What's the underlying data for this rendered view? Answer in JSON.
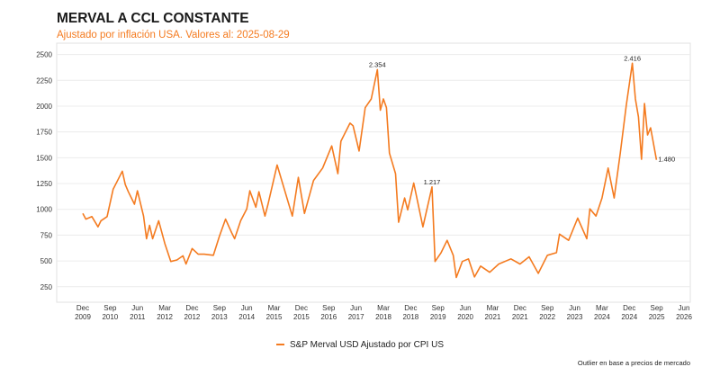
{
  "chart_data": {
    "type": "line",
    "title": "MERVAL A CCL CONSTANTE",
    "subtitle": "Ajustado por inflación USA. Valores al: 2025-08-29",
    "xlabel": "",
    "ylabel": "",
    "ylim": [
      100,
      2610
    ],
    "xlim": [
      "2009-12",
      "2026-06"
    ],
    "grid": true,
    "legend_position": "bottom",
    "y_ticks": [
      250,
      500,
      750,
      1000,
      1250,
      1500,
      1750,
      2000,
      2250,
      2500
    ],
    "x_ticks": [
      {
        "date": "2009-12",
        "label": [
          "Dec",
          "2009"
        ]
      },
      {
        "date": "2010-09",
        "label": [
          "Sep",
          "2010"
        ]
      },
      {
        "date": "2011-06",
        "label": [
          "Jun",
          "2011"
        ]
      },
      {
        "date": "2012-03",
        "label": [
          "Mar",
          "2012"
        ]
      },
      {
        "date": "2012-12",
        "label": [
          "Dec",
          "2012"
        ]
      },
      {
        "date": "2013-09",
        "label": [
          "Sep",
          "2013"
        ]
      },
      {
        "date": "2014-06",
        "label": [
          "Jun",
          "2014"
        ]
      },
      {
        "date": "2015-03",
        "label": [
          "Mar",
          "2015"
        ]
      },
      {
        "date": "2015-12",
        "label": [
          "Dec",
          "2015"
        ]
      },
      {
        "date": "2016-09",
        "label": [
          "Sep",
          "2016"
        ]
      },
      {
        "date": "2017-06",
        "label": [
          "Jun",
          "2017"
        ]
      },
      {
        "date": "2018-03",
        "label": [
          "Mar",
          "2018"
        ]
      },
      {
        "date": "2018-12",
        "label": [
          "Dec",
          "2018"
        ]
      },
      {
        "date": "2019-09",
        "label": [
          "Sep",
          "2019"
        ]
      },
      {
        "date": "2020-06",
        "label": [
          "Jun",
          "2020"
        ]
      },
      {
        "date": "2021-03",
        "label": [
          "Mar",
          "2021"
        ]
      },
      {
        "date": "2021-12",
        "label": [
          "Dec",
          "2021"
        ]
      },
      {
        "date": "2022-09",
        "label": [
          "Sep",
          "2022"
        ]
      },
      {
        "date": "2023-06",
        "label": [
          "Jun",
          "2023"
        ]
      },
      {
        "date": "2024-03",
        "label": [
          "Mar",
          "2024"
        ]
      },
      {
        "date": "2024-12",
        "label": [
          "Dec",
          "2024"
        ]
      },
      {
        "date": "2025-09",
        "label": [
          "Sep",
          "2025"
        ]
      },
      {
        "date": "2026-06",
        "label": [
          "Jun",
          "2026"
        ]
      }
    ],
    "series": [
      {
        "name": "S&P Merval USD Ajustado por CPI US",
        "color": "#f47b20",
        "x": [
          "2009-12",
          "2010-01",
          "2010-03",
          "2010-05",
          "2010-06",
          "2010-08",
          "2010-10",
          "2011-01",
          "2011-02",
          "2011-03",
          "2011-05",
          "2011-06",
          "2011-08",
          "2011-09",
          "2011-10",
          "2011-11",
          "2012-01",
          "2012-03",
          "2012-05",
          "2012-07",
          "2012-09",
          "2012-10",
          "2012-12",
          "2013-02",
          "2013-04",
          "2013-07",
          "2013-09",
          "2013-11",
          "2014-01",
          "2014-02",
          "2014-04",
          "2014-06",
          "2014-07",
          "2014-09",
          "2014-10",
          "2014-12",
          "2015-01",
          "2015-04",
          "2015-09",
          "2015-11",
          "2016-01",
          "2016-04",
          "2016-07",
          "2016-10",
          "2016-12",
          "2017-01",
          "2017-04",
          "2017-05",
          "2017-07",
          "2017-09",
          "2017-11",
          "2018-01",
          "2018-02",
          "2018-03",
          "2018-04",
          "2018-05",
          "2018-07",
          "2018-08",
          "2018-10",
          "2018-11",
          "2019-01",
          "2019-04",
          "2019-07",
          "2019-08",
          "2019-10",
          "2019-12",
          "2020-02",
          "2020-03",
          "2020-05",
          "2020-07",
          "2020-09",
          "2020-11",
          "2021-02",
          "2021-05",
          "2021-09",
          "2021-12",
          "2022-03",
          "2022-06",
          "2022-09",
          "2022-12",
          "2023-01",
          "2023-04",
          "2023-07",
          "2023-10",
          "2023-11",
          "2024-01",
          "2024-03",
          "2024-05",
          "2024-07",
          "2024-09",
          "2024-11",
          "2025-01",
          "2025-02",
          "2025-03",
          "2025-04",
          "2025-05",
          "2025-06",
          "2025-07",
          "2025-08-29"
        ],
        "values": [
          960,
          905,
          930,
          830,
          890,
          930,
          1195,
          1370,
          1240,
          1170,
          1050,
          1180,
          935,
          715,
          845,
          715,
          890,
          670,
          495,
          510,
          550,
          470,
          620,
          565,
          565,
          555,
          740,
          905,
          775,
          715,
          890,
          1005,
          1180,
          1020,
          1170,
          935,
          1050,
          1430,
          935,
          1310,
          960,
          1280,
          1400,
          1615,
          1345,
          1660,
          1835,
          1810,
          1565,
          1985,
          2070,
          2354,
          1960,
          2070,
          1985,
          1545,
          1345,
          875,
          1110,
          995,
          1255,
          830,
          1217,
          495,
          580,
          700,
          555,
          340,
          495,
          520,
          345,
          450,
          390,
          470,
          520,
          470,
          540,
          380,
          555,
          580,
          760,
          700,
          915,
          715,
          1005,
          935,
          1110,
          1400,
          1110,
          1545,
          2010,
          2416,
          2070,
          1895,
          1485,
          2025,
          1720,
          1790,
          1480
        ]
      }
    ],
    "annotations": [
      {
        "x": "2018-01",
        "y": 2354,
        "text": "2.354"
      },
      {
        "x": "2019-07",
        "y": 1217,
        "text": "1.217"
      },
      {
        "x": "2025-01",
        "y": 2416,
        "text": "2.416"
      },
      {
        "x": "2025-08-29",
        "y": 1480,
        "text": "1.480"
      }
    ],
    "footnote": "Outlier en base a precios de mercado"
  }
}
